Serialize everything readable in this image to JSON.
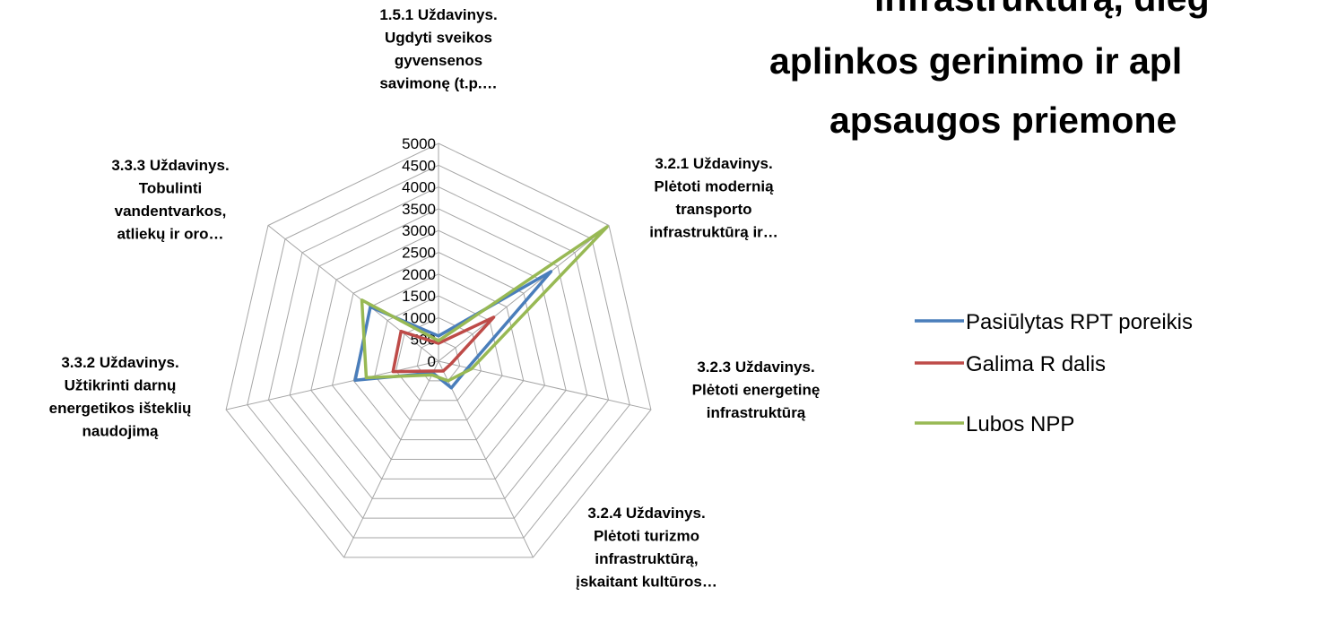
{
  "chart_data": {
    "type": "radar",
    "title_lines": [
      "infrastruktūrą, dieg",
      "aplinkos gerinimo ir apl",
      "apsaugos priemone"
    ],
    "categories": [
      [
        "1.5.1 Uždavinys.",
        "Ugdyti sveikos",
        "gyvensenos",
        "savimonę (t.p.…"
      ],
      [
        "3.2.1 Uždavinys.",
        "Plėtoti modernią",
        "transporto",
        "infrastruktūrą ir…"
      ],
      [
        "3.2.3 Uždavinys.",
        "Plėtoti energetinę",
        "infrastruktūrą"
      ],
      [
        "3.2.4 Uždavinys.",
        "Plėtoti turizmo",
        "infrastruktūrą,",
        "įskaitant kultūros…"
      ],
      null,
      [
        "3.3.2 Uždavinys.",
        "Užtikrinti darnų",
        "energetikos išteklių",
        "naudojimą"
      ],
      [
        "3.3.3 Uždavinys.",
        "Tobulinti",
        "vandentvarkos,",
        "atliekų ir oro…"
      ]
    ],
    "series": [
      {
        "name": "Pasiūlytas RPT poreikis",
        "color": "#4a7ebb",
        "values": [
          580,
          3300,
          690,
          680,
          300,
          1960,
          2000
        ]
      },
      {
        "name": "Galima R dalis",
        "color": "#be4b48",
        "values": [
          410,
          1620,
          290,
          250,
          250,
          1070,
          1100
        ]
      },
      {
        "name": "Lubos NPP",
        "color": "#98b954",
        "values": [
          470,
          4950,
          780,
          500,
          350,
          1700,
          2250
        ]
      }
    ],
    "ylim": [
      0,
      5000
    ],
    "yticks": [
      0,
      500,
      1000,
      1500,
      2000,
      2500,
      3000,
      3500,
      4000,
      4500,
      5000
    ],
    "grid": true,
    "legend": "right"
  }
}
